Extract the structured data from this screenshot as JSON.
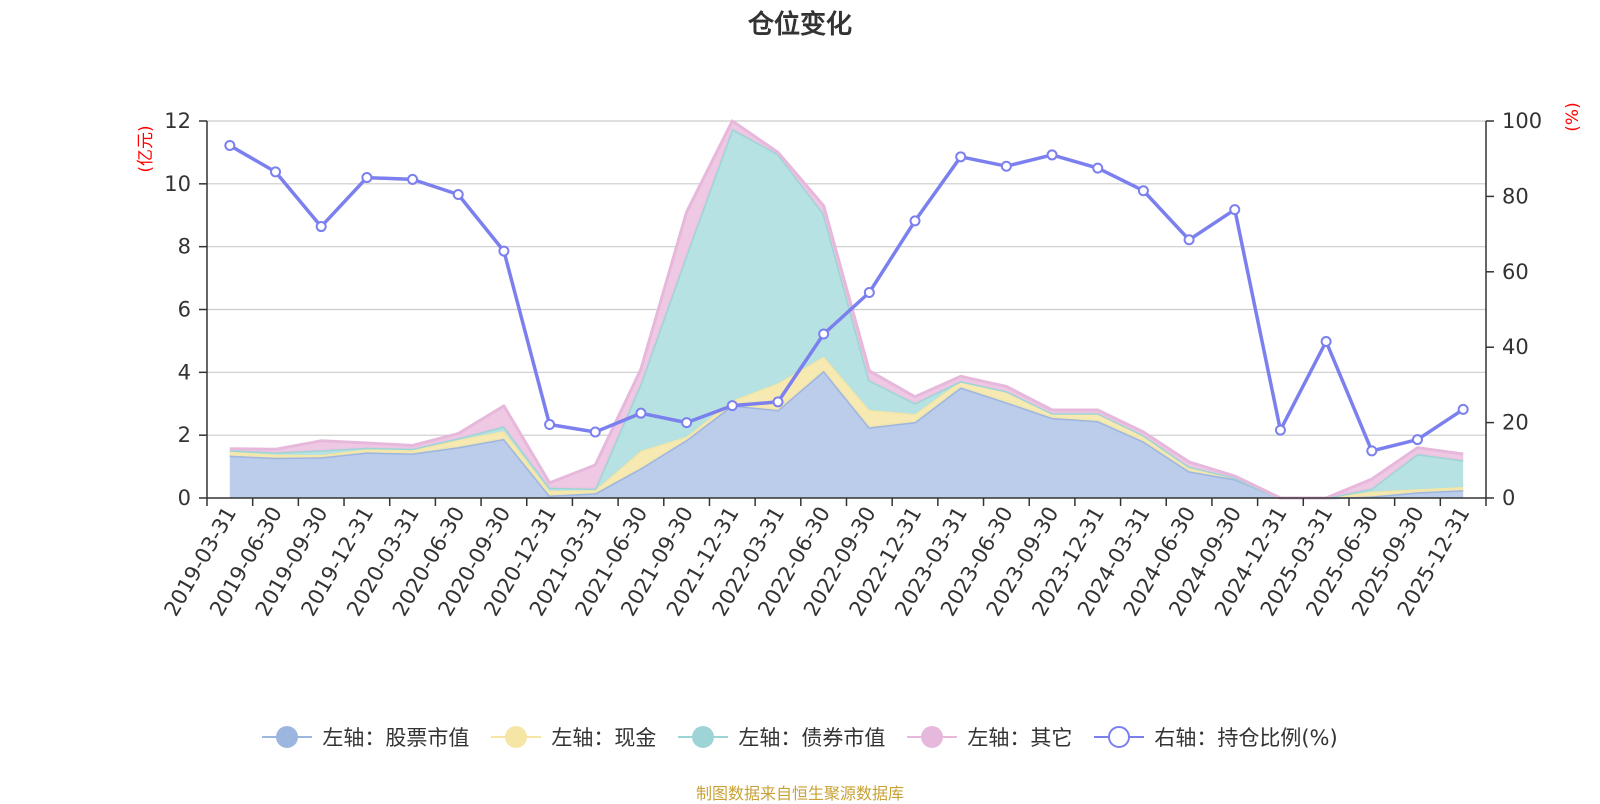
{
  "chart_data": {
    "type": "area",
    "title": "仓位变化",
    "source_note": "制图数据来自恒生聚源数据库",
    "left_axis": {
      "unit": "(亿元)",
      "ylim": [
        0,
        12
      ],
      "ticks": [
        0,
        2,
        4,
        6,
        8,
        10,
        12
      ]
    },
    "right_axis": {
      "unit": "(%)",
      "ylim": [
        0,
        100
      ],
      "ticks": [
        0,
        20,
        40,
        60,
        80,
        100
      ]
    },
    "categories": [
      "2019-03-31",
      "2019-06-30",
      "2019-09-30",
      "2019-12-31",
      "2020-03-31",
      "2020-06-30",
      "2020-09-30",
      "2020-12-31",
      "2021-03-31",
      "2021-06-30",
      "2021-09-30",
      "2021-12-31",
      "2022-03-31",
      "2022-06-30",
      "2022-09-30",
      "2022-12-31",
      "2023-03-31",
      "2023-06-30",
      "2023-09-30",
      "2023-12-31",
      "2024-03-31",
      "2024-06-30",
      "2024-09-30",
      "2024-12-31",
      "2025-03-31",
      "2025-06-30",
      "2025-09-30",
      "2025-12-31"
    ],
    "stacked_series": [
      {
        "name": "左轴：股票市值",
        "color": "#9db6e0",
        "fill": "#b8c9ea",
        "values": [
          1.35,
          1.28,
          1.3,
          1.45,
          1.42,
          1.62,
          1.88,
          0.08,
          0.15,
          0.95,
          1.85,
          2.95,
          2.8,
          4.05,
          2.25,
          2.42,
          3.52,
          3.05,
          2.55,
          2.45,
          1.8,
          0.85,
          0.6,
          0.0,
          0.0,
          0.05,
          0.18,
          0.25
        ]
      },
      {
        "name": "左轴：现金",
        "color": "#f5e6a6",
        "fill": "#f6e8ad",
        "values": [
          0.12,
          0.1,
          0.07,
          0.1,
          0.1,
          0.23,
          0.25,
          0.15,
          0.1,
          0.55,
          0.1,
          0.15,
          0.85,
          0.45,
          0.55,
          0.25,
          0.2,
          0.35,
          0.15,
          0.25,
          0.2,
          0.15,
          0.05,
          0.0,
          0.0,
          0.15,
          0.1,
          0.1
        ]
      },
      {
        "name": "左轴：债券市值",
        "color": "#9fd4d6",
        "fill": "#b2e0e1",
        "values": [
          0.05,
          0.07,
          0.15,
          0.05,
          0.05,
          0.05,
          0.15,
          0.1,
          0.05,
          2.15,
          5.8,
          8.65,
          7.3,
          4.55,
          0.95,
          0.35,
          0.0,
          0.0,
          0.0,
          0.0,
          0.0,
          0.0,
          0.0,
          0.0,
          0.0,
          0.1,
          1.12,
          0.85
        ]
      },
      {
        "name": "左轴：其它",
        "color": "#e6b8dc",
        "fill": "#eec5e3",
        "values": [
          0.05,
          0.1,
          0.3,
          0.15,
          0.1,
          0.15,
          0.65,
          0.15,
          0.75,
          0.45,
          1.35,
          0.25,
          0.05,
          0.25,
          0.3,
          0.2,
          0.15,
          0.15,
          0.1,
          0.1,
          0.1,
          0.15,
          0.05,
          0.0,
          0.0,
          0.3,
          0.2,
          0.2
        ]
      }
    ],
    "line_series": {
      "name": "右轴：持仓比例(%)",
      "color": "#7b80ee",
      "values": [
        93.5,
        86.5,
        72,
        85,
        84.5,
        80.5,
        65.5,
        19.5,
        17.5,
        22.5,
        20,
        24.5,
        25.5,
        43.5,
        54.5,
        73.5,
        90.5,
        88,
        91,
        87.5,
        81.5,
        68.5,
        76.5,
        18,
        41.5,
        12.5,
        15.5,
        23.5
      ]
    }
  }
}
